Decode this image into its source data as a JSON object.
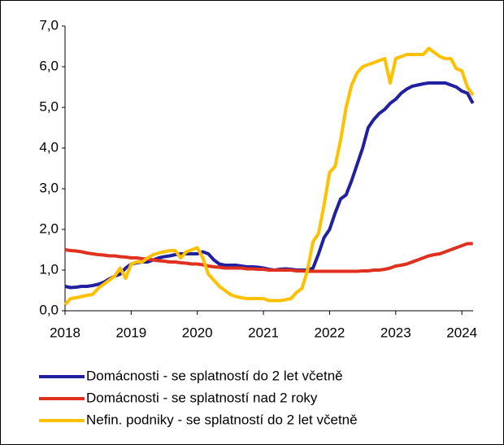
{
  "chart_data": {
    "type": "line",
    "categories": [
      "2018",
      null,
      null,
      null,
      null,
      null,
      null,
      null,
      null,
      null,
      null,
      null,
      "2019",
      null,
      null,
      null,
      null,
      null,
      null,
      null,
      null,
      null,
      null,
      null,
      "2020",
      null,
      null,
      null,
      null,
      null,
      null,
      null,
      null,
      null,
      null,
      null,
      "2021",
      null,
      null,
      null,
      null,
      null,
      null,
      null,
      null,
      null,
      null,
      null,
      "2022",
      null,
      null,
      null,
      null,
      null,
      null,
      null,
      null,
      null,
      null,
      null,
      "2023",
      null,
      null,
      null,
      null,
      null,
      null,
      null,
      null,
      null,
      null,
      null,
      "2024",
      null,
      null
    ],
    "series": [
      {
        "name": "Domácnosti - se splatností do 2 let včetně",
        "color": "#2020a0",
        "values": [
          0.6,
          0.57,
          0.58,
          0.6,
          0.6,
          0.62,
          0.65,
          0.7,
          0.78,
          0.85,
          0.9,
          1.05,
          1.15,
          1.18,
          1.2,
          1.2,
          1.25,
          1.3,
          1.33,
          1.35,
          1.38,
          1.4,
          1.4,
          1.4,
          1.4,
          1.45,
          1.4,
          1.25,
          1.15,
          1.12,
          1.12,
          1.12,
          1.1,
          1.08,
          1.08,
          1.07,
          1.05,
          1.02,
          1.0,
          1.02,
          1.03,
          1.02,
          1.0,
          1.0,
          1.0,
          1.05,
          1.4,
          1.8,
          2.0,
          2.4,
          2.75,
          2.85,
          3.2,
          3.6,
          4.0,
          4.5,
          4.7,
          4.85,
          4.95,
          5.1,
          5.2,
          5.35,
          5.45,
          5.52,
          5.55,
          5.58,
          5.6,
          5.6,
          5.6,
          5.6,
          5.55,
          5.5,
          5.4,
          5.35,
          5.1
        ]
      },
      {
        "name": "Domácnosti - se splatností nad 2 roky",
        "color": "#e03020",
        "values": [
          1.5,
          1.48,
          1.47,
          1.45,
          1.42,
          1.4,
          1.38,
          1.37,
          1.35,
          1.35,
          1.33,
          1.32,
          1.3,
          1.3,
          1.28,
          1.27,
          1.25,
          1.23,
          1.22,
          1.2,
          1.2,
          1.18,
          1.17,
          1.15,
          1.15,
          1.13,
          1.1,
          1.08,
          1.07,
          1.05,
          1.05,
          1.05,
          1.05,
          1.03,
          1.03,
          1.02,
          1.02,
          1.0,
          1.0,
          1.0,
          1.0,
          1.0,
          0.98,
          0.98,
          0.97,
          0.97,
          0.97,
          0.97,
          0.97,
          0.97,
          0.97,
          0.97,
          0.97,
          0.97,
          0.98,
          0.98,
          1.0,
          1.0,
          1.02,
          1.05,
          1.1,
          1.12,
          1.15,
          1.2,
          1.25,
          1.3,
          1.35,
          1.38,
          1.4,
          1.45,
          1.5,
          1.55,
          1.6,
          1.65,
          1.65
        ]
      },
      {
        "name": "Nefin. podniky - se splatností do 2 let včetně",
        "color": "#ffc000",
        "values": [
          0.15,
          0.3,
          0.32,
          0.35,
          0.38,
          0.4,
          0.55,
          0.65,
          0.75,
          0.85,
          1.05,
          0.8,
          1.15,
          1.2,
          1.2,
          1.3,
          1.38,
          1.42,
          1.45,
          1.48,
          1.48,
          1.3,
          1.45,
          1.5,
          1.55,
          1.3,
          0.9,
          0.75,
          0.6,
          0.5,
          0.4,
          0.35,
          0.32,
          0.3,
          0.3,
          0.3,
          0.3,
          0.25,
          0.25,
          0.25,
          0.27,
          0.3,
          0.45,
          0.55,
          1.0,
          1.7,
          1.9,
          2.6,
          3.4,
          3.55,
          4.2,
          5.0,
          5.55,
          5.85,
          6.0,
          6.05,
          6.1,
          6.15,
          6.2,
          5.6,
          6.2,
          6.25,
          6.3,
          6.3,
          6.3,
          6.3,
          6.45,
          6.35,
          6.25,
          6.2,
          6.2,
          5.95,
          5.9,
          5.5,
          5.3
        ]
      }
    ],
    "ylim": [
      0,
      7
    ],
    "yticks": [
      {
        "value": 0,
        "label": "0,0"
      },
      {
        "value": 1,
        "label": "1,0"
      },
      {
        "value": 2,
        "label": "2,0"
      },
      {
        "value": 3,
        "label": "3,0"
      },
      {
        "value": 4,
        "label": "4,0"
      },
      {
        "value": 5,
        "label": "5,0"
      },
      {
        "value": 6,
        "label": "6,0"
      },
      {
        "value": 7,
        "label": "7,0"
      }
    ],
    "grid": false
  }
}
